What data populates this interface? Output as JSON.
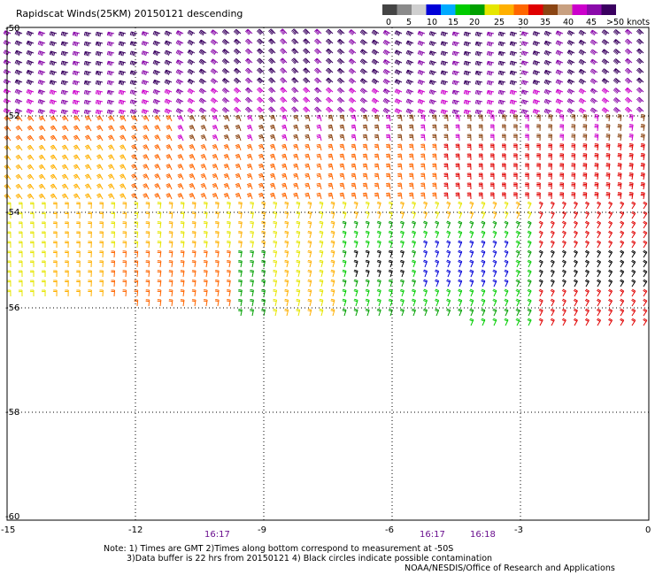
{
  "title": "Rapidscat Winds(25KM) 20150121 descending",
  "colorbar": {
    "colors": [
      "#444444",
      "#8a8a8a",
      "#cfcfcf",
      "#0000d8",
      "#00aaff",
      "#00cc00",
      "#00a000",
      "#e6e600",
      "#ffb000",
      "#ff6600",
      "#e00000",
      "#8b4513",
      "#c8a080",
      "#cc00cc",
      "#8a0aaa",
      "#3a0060"
    ],
    "labels": [
      "0",
      "5",
      "10",
      "15",
      "20",
      "25",
      "30",
      "35",
      "40",
      "45",
      ">50 knots"
    ]
  },
  "axes": {
    "lon_ticks": [
      "-15",
      "-12",
      "-9",
      "-6",
      "-3",
      "0"
    ],
    "lat_ticks": [
      "-50",
      "-52",
      "-54",
      "-56",
      "-58",
      "-60"
    ]
  },
  "times": [
    "16:17",
    "16:17",
    "16:18"
  ],
  "notes": {
    "line1": "Note: 1) Times are GMT 2)Times along bottom correspond to measurement at -50S",
    "line2": "3)Data buffer is 22 hrs from 20150121 4) Black circles indicate possible contamination",
    "credit": "NOAA/NESDIS/Office of Research and Applications"
  }
}
